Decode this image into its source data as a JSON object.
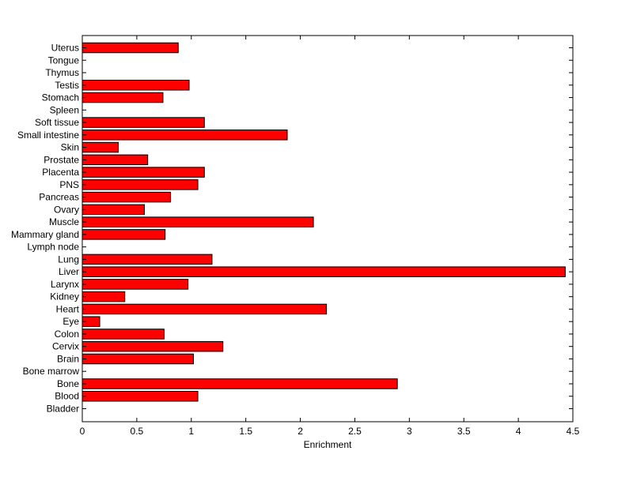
{
  "chart_data": {
    "type": "bar",
    "orientation": "horizontal",
    "title": "",
    "xlabel": "Enrichment",
    "ylabel": "",
    "xlim": [
      0,
      4.5
    ],
    "xticks": [
      "0",
      "0.5",
      "1",
      "1.5",
      "2",
      "2.5",
      "3",
      "3.5",
      "4",
      "4.5"
    ],
    "grid": false,
    "bar_color": "#ff0000",
    "bar_edge_color": "#000000",
    "categories": [
      "Bladder",
      "Blood",
      "Bone",
      "Bone marrow",
      "Brain",
      "Cervix",
      "Colon",
      "Eye",
      "Heart",
      "Kidney",
      "Larynx",
      "Liver",
      "Lung",
      "Lymph node",
      "Mammary gland",
      "Muscle",
      "Ovary",
      "Pancreas",
      "PNS",
      "Placenta",
      "Prostate",
      "Skin",
      "Small intestine",
      "Soft tissue",
      "Spleen",
      "Stomach",
      "Testis",
      "Thymus",
      "Tongue",
      "Uterus"
    ],
    "values": [
      0,
      1.06,
      2.89,
      0,
      1.02,
      1.29,
      0.75,
      0.16,
      2.24,
      0.39,
      0.97,
      4.43,
      1.19,
      0,
      0.76,
      2.12,
      0.57,
      0.81,
      1.06,
      1.12,
      0.6,
      0.33,
      1.88,
      1.12,
      0,
      0.74,
      0.98,
      0,
      0,
      0.88
    ]
  }
}
